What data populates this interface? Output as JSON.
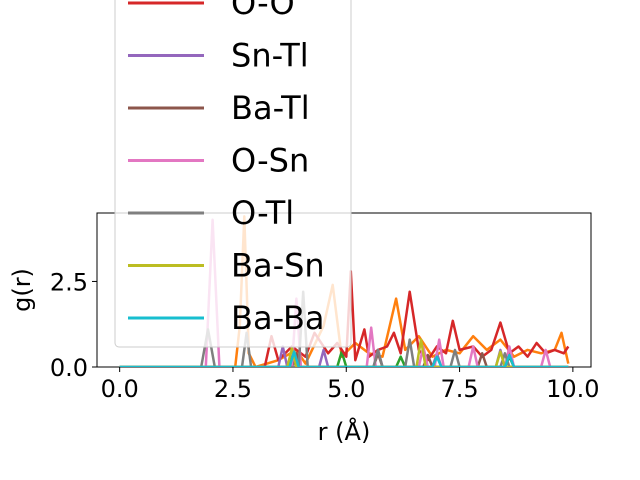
{
  "chart_data": {
    "type": "line",
    "title": "",
    "xlabel": "r (Å)",
    "ylabel": "g(r)",
    "xlim": [
      -0.5,
      10.4
    ],
    "ylim": [
      0,
      4.5
    ],
    "xticks": [
      0.0,
      2.5,
      5.0,
      7.5,
      10.0
    ],
    "xtick_labels": [
      "0.0",
      "2.5",
      "5.0",
      "7.5",
      "10.0"
    ],
    "yticks": [
      0.0,
      2.5
    ],
    "ytick_labels": [
      "0.0",
      "2.5"
    ],
    "grid": false,
    "legend_position": "upper-left",
    "series": [
      {
        "name": "",
        "color": "#ff7f0e",
        "legend": false,
        "x": [
          0,
          2.55,
          2.65,
          2.75,
          2.85,
          3.0,
          3.5,
          3.9,
          4.1,
          4.5,
          4.7,
          4.9,
          5.2,
          5.5,
          5.8,
          6.1,
          6.3,
          6.6,
          6.9,
          7.2,
          7.5,
          7.8,
          8.1,
          8.4,
          8.7,
          9.0,
          9.3,
          9.6,
          9.75,
          9.9
        ],
        "y": [
          0,
          0,
          1.2,
          4.4,
          0.4,
          0,
          0.2,
          0.5,
          0.1,
          1.2,
          2.4,
          0.3,
          0.7,
          0.4,
          0.3,
          2.0,
          0.5,
          0.9,
          0.3,
          0.5,
          0.4,
          0.9,
          0.5,
          0.8,
          0.3,
          0.5,
          0.4,
          0.5,
          1.0,
          0.1
        ]
      },
      {
        "name": "",
        "color": "#2ca02c",
        "legend": false,
        "x": [
          0,
          3.7,
          3.8,
          3.9,
          4.8,
          4.9,
          5.0,
          6.1,
          6.2,
          6.3,
          8.5,
          8.6,
          8.7,
          9.9
        ],
        "y": [
          0,
          0,
          0.35,
          0,
          0,
          0.45,
          0,
          0,
          0.3,
          0,
          0,
          0.3,
          0,
          0
        ]
      },
      {
        "name": "O-O",
        "color": "#d62728",
        "legend": true,
        "x": [
          0,
          3.2,
          3.35,
          3.5,
          3.8,
          4.1,
          4.3,
          4.6,
          4.8,
          5.0,
          5.1,
          5.2,
          5.4,
          5.5,
          5.7,
          5.9,
          6.05,
          6.2,
          6.4,
          6.6,
          6.8,
          7.0,
          7.2,
          7.35,
          7.5,
          7.8,
          8.0,
          8.2,
          8.4,
          8.6,
          8.8,
          9.0,
          9.2,
          9.4,
          9.6,
          9.8,
          9.9
        ],
        "y": [
          0,
          0,
          0.9,
          0.2,
          0.6,
          0.3,
          1.0,
          0.4,
          0.7,
          0.3,
          2.8,
          0.2,
          1.1,
          0.3,
          0.5,
          0.6,
          1.0,
          0.4,
          2.2,
          0.5,
          0.2,
          0.6,
          0.4,
          1.35,
          0.5,
          0.6,
          0.3,
          0.5,
          1.3,
          0.4,
          0.6,
          0.3,
          0.7,
          0.4,
          0.5,
          0.4,
          0.6
        ]
      },
      {
        "name": "Sn-Tl",
        "color": "#9467bd",
        "legend": true,
        "x": [
          0,
          3.5,
          3.6,
          3.7,
          4.4,
          4.5,
          4.6,
          5.6,
          5.7,
          5.8,
          6.9,
          7.0,
          7.1,
          8.3,
          8.4,
          8.5,
          9.9
        ],
        "y": [
          0,
          0,
          0.6,
          0,
          0,
          0.5,
          0,
          0,
          0.5,
          0,
          0,
          0.4,
          0,
          0,
          0.5,
          0,
          0
        ]
      },
      {
        "name": "Ba-Tl",
        "color": "#8c564b",
        "legend": true,
        "x": [
          0,
          3.8,
          3.9,
          4.0,
          5.6,
          5.7,
          5.8,
          6.7,
          6.8,
          6.9,
          7.9,
          8.0,
          8.1,
          9.9
        ],
        "y": [
          0,
          0,
          0.4,
          0,
          0,
          0.4,
          0,
          0,
          0.35,
          0,
          0,
          0.4,
          0,
          0
        ]
      },
      {
        "name": "O-Sn",
        "color": "#e377c2",
        "legend": true,
        "x": [
          0,
          1.9,
          2.05,
          2.2,
          3.8,
          3.9,
          4.0,
          5.45,
          5.55,
          5.65,
          6.6,
          6.7,
          6.8,
          6.95,
          7.05,
          7.15,
          7.7,
          7.8,
          7.9,
          8.5,
          8.6,
          8.7,
          9.3,
          9.4,
          9.5,
          9.9
        ],
        "y": [
          0,
          0,
          4.3,
          0,
          0,
          2.0,
          0,
          0,
          1.15,
          0,
          0,
          0.6,
          0,
          0,
          0.8,
          0,
          0,
          0.6,
          0,
          0,
          0.6,
          0,
          0,
          0.5,
          0,
          0
        ]
      },
      {
        "name": "O-Tl",
        "color": "#7f7f7f",
        "legend": true,
        "x": [
          0,
          1.8,
          1.95,
          2.1,
          2.7,
          2.8,
          2.9,
          3.95,
          4.05,
          4.15,
          5.6,
          5.7,
          5.8,
          6.3,
          6.4,
          6.5,
          7.3,
          7.4,
          7.5,
          8.4,
          8.5,
          8.6,
          9.9
        ],
        "y": [
          0,
          0,
          1.1,
          0,
          0,
          1.0,
          0,
          0,
          2.2,
          0,
          0,
          0.5,
          0,
          0,
          0.8,
          0,
          0,
          0.5,
          0,
          0,
          0.4,
          0,
          0
        ]
      },
      {
        "name": "Ba-Sn",
        "color": "#bcbd22",
        "legend": true,
        "x": [
          0,
          3.7,
          3.8,
          3.9,
          6.55,
          6.65,
          6.75,
          8.3,
          8.4,
          8.5,
          9.9
        ],
        "y": [
          0,
          0,
          0.55,
          0,
          0,
          0.8,
          0,
          0,
          0.45,
          0,
          0
        ]
      },
      {
        "name": "Ba-Ba",
        "color": "#17becf",
        "legend": true,
        "x": [
          0,
          3.75,
          3.85,
          3.95,
          6.9,
          7.0,
          7.1,
          8.5,
          8.6,
          8.7,
          9.9
        ],
        "y": [
          0,
          0,
          0.45,
          0,
          0,
          0.3,
          0,
          0,
          0.35,
          0,
          0
        ]
      }
    ]
  }
}
